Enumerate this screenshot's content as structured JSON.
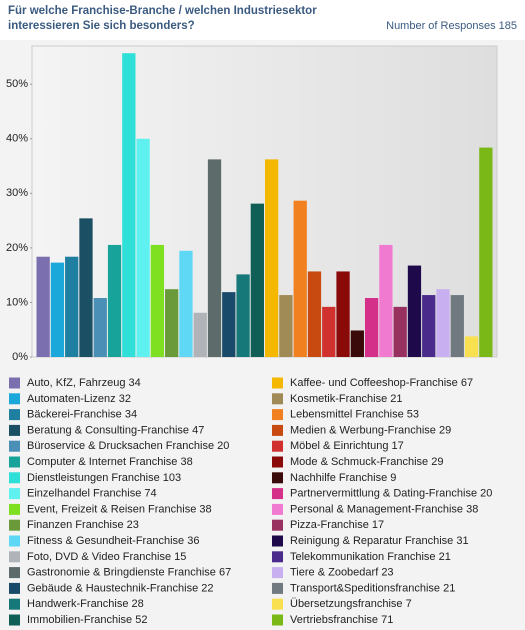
{
  "chart_data": {
    "type": "bar",
    "title": [
      "Für welche Franchise-Branche / welchen Industriesektor",
      "interessieren Sie sich besonders?"
    ],
    "responses_label": "Number of Responses",
    "responses": 185,
    "ylim": [
      0,
      57
    ],
    "yticks": [
      {
        "value": 0,
        "label": "0%"
      },
      {
        "value": 10,
        "label": "10%"
      },
      {
        "value": 20,
        "label": "20%"
      },
      {
        "value": 30,
        "label": "30%"
      },
      {
        "value": 40,
        "label": "40%"
      },
      {
        "value": 50,
        "label": "50%"
      }
    ],
    "grid": false,
    "series": [
      {
        "name": "Auto, KfZ, Fahrzeug",
        "color": "#7b6fb0",
        "count": 34,
        "value": 18.38
      },
      {
        "name": "Automaten-Lizenz",
        "color": "#1aa7d9",
        "count": 32,
        "value": 17.3
      },
      {
        "name": "Bäckerei-Franchise",
        "color": "#1f7fa0",
        "count": 34,
        "value": 18.38
      },
      {
        "name": "Beratung & Consulting-Franchise",
        "color": "#1b4f63",
        "count": 47,
        "value": 25.41
      },
      {
        "name": "Büroservice & Drucksachen Franchise",
        "color": "#4a8fb5",
        "count": 20,
        "value": 10.81
      },
      {
        "name": "Computer & Internet Franchise",
        "color": "#17a39a",
        "count": 38,
        "value": 20.54
      },
      {
        "name": "Dienstleistungen Franchise",
        "color": "#2fe0d8",
        "count": 103,
        "value": 55.68
      },
      {
        "name": "Einzelhandel Franchise",
        "color": "#5ff0f0",
        "count": 74,
        "value": 40.0
      },
      {
        "name": "Event, Freizeit & Reisen Franchise",
        "color": "#7ee021",
        "count": 38,
        "value": 20.54
      },
      {
        "name": "Finanzen Franchise",
        "color": "#6a9a3a",
        "count": 23,
        "value": 12.43
      },
      {
        "name": "Fitness & Gesundheit-Franchise",
        "color": "#5fd8f5",
        "count": 36,
        "value": 19.46
      },
      {
        "name": "Foto, DVD & Video Franchise",
        "color": "#b0b4b8",
        "count": 15,
        "value": 8.11
      },
      {
        "name": "Gastronomie & Bringdienste Franchise",
        "color": "#5e6b6b",
        "count": 67,
        "value": 36.22
      },
      {
        "name": "Gebäude & Haustechnik-Franchise",
        "color": "#1a4a6a",
        "count": 22,
        "value": 11.89
      },
      {
        "name": "Handwerk-Franchise",
        "color": "#167878",
        "count": 28,
        "value": 15.14
      },
      {
        "name": "Immobilien-Franchise",
        "color": "#0f5f57",
        "count": 52,
        "value": 28.11
      },
      {
        "name": "Kaffee- und Coffeeshop-Franchise",
        "color": "#f5b800",
        "count": 67,
        "value": 36.22
      },
      {
        "name": "Kosmetik-Franchise",
        "color": "#a08a55",
        "count": 21,
        "value": 11.35
      },
      {
        "name": "Lebensmittel Franchise",
        "color": "#f08020",
        "count": 53,
        "value": 28.65
      },
      {
        "name": "Medien & Werbung-Franchise",
        "color": "#c84a10",
        "count": 29,
        "value": 15.68
      },
      {
        "name": "Möbel & Einrichtung",
        "color": "#d0302e",
        "count": 17,
        "value": 9.19
      },
      {
        "name": "Mode & Schmuck-Franchise",
        "color": "#8a0a0a",
        "count": 29,
        "value": 15.68
      },
      {
        "name": "Nachhilfe Franchise",
        "color": "#3a0a0a",
        "count": 9,
        "value": 4.86
      },
      {
        "name": "Partnervermittlung & Dating-Franchise",
        "color": "#d4308a",
        "count": 20,
        "value": 10.81
      },
      {
        "name": "Personal & Management-Franchise",
        "color": "#f07ad0",
        "count": 38,
        "value": 20.54
      },
      {
        "name": "Pizza-Franchise",
        "color": "#983060",
        "count": 17,
        "value": 9.19
      },
      {
        "name": "Reinigung & Reparatur Franchise",
        "color": "#1e0a4a",
        "count": 31,
        "value": 16.76
      },
      {
        "name": "Telekommunikation Franchise",
        "color": "#4a2a8a",
        "count": 21,
        "value": 11.35
      },
      {
        "name": "Tiere & Zoobedarf",
        "color": "#c8b0f0",
        "count": 23,
        "value": 12.43
      },
      {
        "name": "Transport&Speditionsfranchise",
        "color": "#707880",
        "count": 21,
        "value": 11.35
      },
      {
        "name": "Übersetzungsfranchise",
        "color": "#f8e050",
        "count": 7,
        "value": 3.78
      },
      {
        "name": "Vertriebsfranchise",
        "color": "#7ab818",
        "count": 71,
        "value": 38.38
      }
    ]
  }
}
